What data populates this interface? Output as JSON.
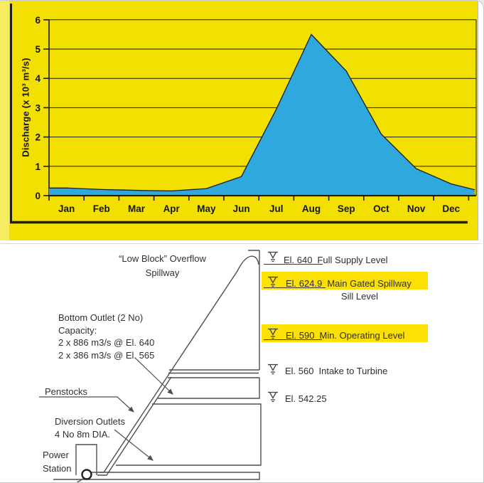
{
  "chart": {
    "y_axis_title": "Discharge (x 10³ m³/s)"
  },
  "chart_data": {
    "type": "area",
    "title": "",
    "xlabel": "",
    "ylabel": "Discharge (x 10^3 m^3/s)",
    "categories": [
      "Jan",
      "Feb",
      "Mar",
      "Apr",
      "May",
      "Jun",
      "Jul",
      "Aug",
      "Sep",
      "Oct",
      "Nov",
      "Dec"
    ],
    "values": [
      0.26,
      0.21,
      0.18,
      0.16,
      0.24,
      0.65,
      2.95,
      5.5,
      4.25,
      2.1,
      0.92,
      0.4
    ],
    "edge_start_value": 0.26,
    "edge_end_value": 0.2,
    "ylim": [
      0,
      6
    ],
    "y_tick_step": 1,
    "grid": "horizontal",
    "legend": "none",
    "fill_color": "#2fa8dd",
    "line_color": "#1c1c1c",
    "background_color": "#f2e003"
  },
  "diagram": {
    "highlight_color": "#fde104",
    "spillway_label_line1": "“Low Block” Overflow",
    "spillway_label_line2": "Spillway",
    "bottom_outlet_lines": [
      "Bottom Outlet (2 No)",
      "Capacity:",
      "2 x 886 m3/s @ El. 640",
      "2 x 386 m3/s @ El. 565"
    ],
    "penstocks_label": "Penstocks",
    "diversion_line1": "Diversion Outlets",
    "diversion_line2": "4 No 8m DIA.",
    "power_line1": "Power",
    "power_line2": "Station",
    "levels": [
      {
        "el": "El. 640",
        "desc": "Full Supply Level",
        "desc2": "",
        "highlighted": false
      },
      {
        "el": "El. 624.9",
        "desc": "Main Gated Spillway",
        "desc2": "Sill Level",
        "highlighted": true
      },
      {
        "el": "El. 590",
        "desc": "Min. Operating Level",
        "desc2": "",
        "highlighted": true
      },
      {
        "el": "El. 560",
        "desc": "Intake to Turbine",
        "desc2": "",
        "highlighted": false
      },
      {
        "el": "El. 542.25",
        "desc": "",
        "desc2": "",
        "highlighted": false
      }
    ]
  }
}
